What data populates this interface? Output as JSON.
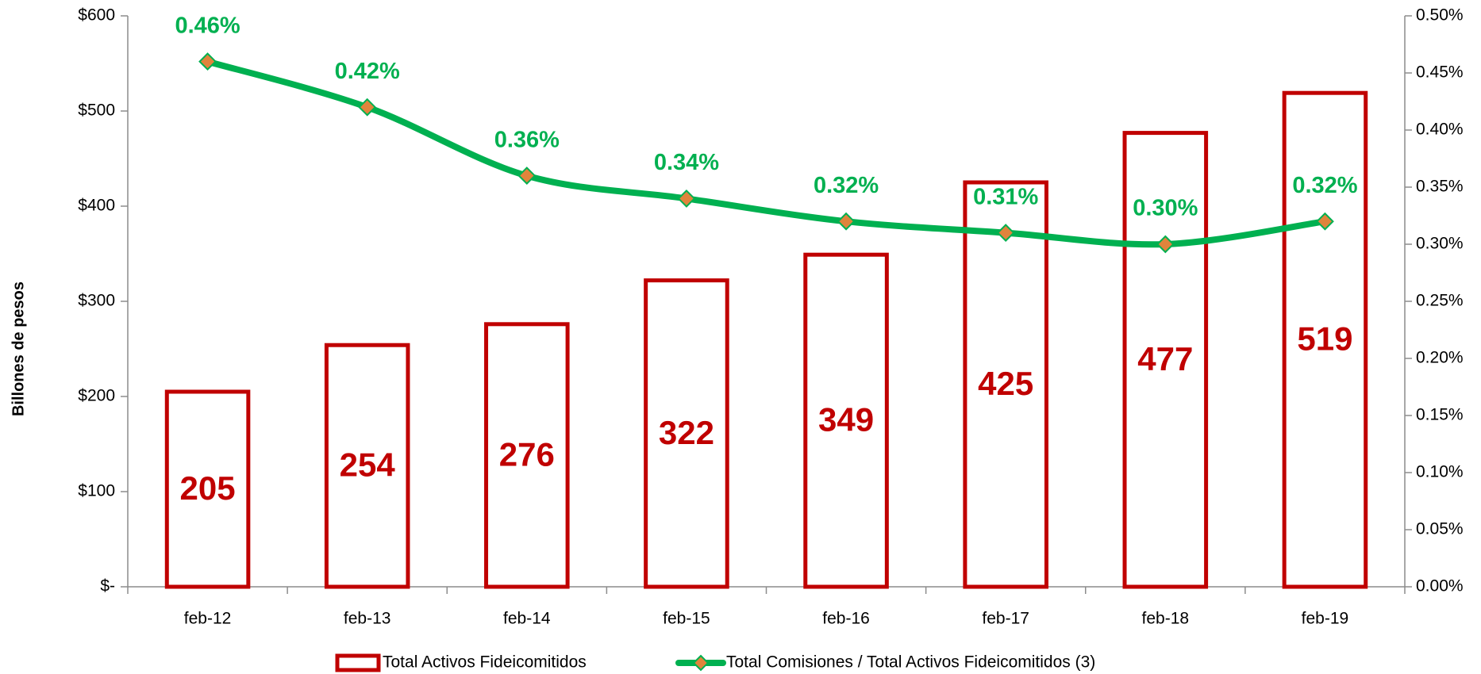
{
  "chart_data": {
    "type": "combo",
    "y_axis_label": "Billones de pesos",
    "categories": [
      "feb-12",
      "feb-13",
      "feb-14",
      "feb-15",
      "feb-16",
      "feb-17",
      "feb-18",
      "feb-19"
    ],
    "series": [
      {
        "name": "Total Activos Fideicomitidos",
        "type": "bar",
        "color": "#c00000",
        "values": [
          205,
          254,
          276,
          322,
          349,
          425,
          477,
          519
        ]
      },
      {
        "name": "Total Comisiones / Total Activos Fideicomitidos (3)",
        "type": "line",
        "axis": "y2",
        "color": "#00b050",
        "marker_color": "#e0843c",
        "values": [
          0.46,
          0.42,
          0.36,
          0.34,
          0.32,
          0.31,
          0.3,
          0.32
        ],
        "value_labels": [
          "0.46%",
          "0.42%",
          "0.36%",
          "0.34%",
          "0.32%",
          "0.31%",
          "0.30%",
          "0.32%"
        ]
      }
    ],
    "ylim": [
      0,
      600
    ],
    "yticks": [
      {
        "value": 0,
        "label": "$-"
      },
      {
        "value": 100,
        "label": "$100"
      },
      {
        "value": 200,
        "label": "$200"
      },
      {
        "value": 300,
        "label": "$300"
      },
      {
        "value": 400,
        "label": "$400"
      },
      {
        "value": 500,
        "label": "$500"
      },
      {
        "value": 600,
        "label": "$600"
      }
    ],
    "y2lim": [
      0,
      0.5
    ],
    "y2ticks": [
      {
        "value": 0,
        "label": "0.00%"
      },
      {
        "value": 0.05,
        "label": "0.05%"
      },
      {
        "value": 0.1,
        "label": "0.10%"
      },
      {
        "value": 0.15,
        "label": "0.15%"
      },
      {
        "value": 0.2,
        "label": "0.20%"
      },
      {
        "value": 0.25,
        "label": "0.25%"
      },
      {
        "value": 0.3,
        "label": "0.30%"
      },
      {
        "value": 0.35,
        "label": "0.35%"
      },
      {
        "value": 0.4,
        "label": "0.40%"
      },
      {
        "value": 0.45,
        "label": "0.45%"
      },
      {
        "value": 0.5,
        "label": "0.50%"
      }
    ],
    "legend": "bottom"
  }
}
